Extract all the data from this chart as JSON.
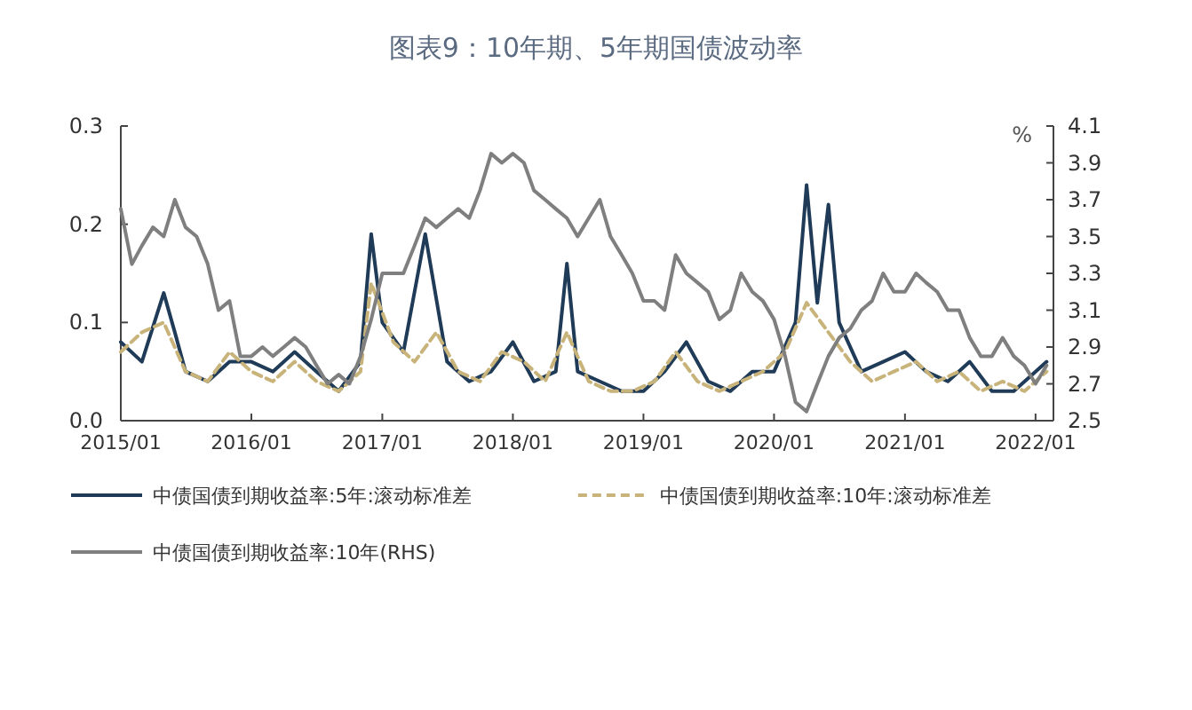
{
  "chart_data": {
    "type": "line",
    "title": "图表9：10年期、5年期国债波动率",
    "y2label": "%",
    "legend": "bottom",
    "xlim": [
      "2015-01-01",
      "2022-02-20"
    ],
    "xticks": [
      {
        "value": "2015-01-01",
        "label": "2015/01"
      },
      {
        "value": "2016-01-01",
        "label": "2016/01"
      },
      {
        "value": "2017-01-01",
        "label": "2017/01"
      },
      {
        "value": "2018-01-01",
        "label": "2018/01"
      },
      {
        "value": "2019-01-01",
        "label": "2019/01"
      },
      {
        "value": "2020-01-01",
        "label": "2020/01"
      },
      {
        "value": "2021-01-01",
        "label": "2021/01"
      },
      {
        "value": "2022-01-01",
        "label": "2022/01"
      }
    ],
    "ylim": [
      0,
      0.3
    ],
    "yticks": [
      {
        "value": 0,
        "label": "0.0"
      },
      0.1,
      0.2,
      0.3
    ],
    "y2lim": [
      2.5,
      4.1
    ],
    "y2ticks": [
      2.5,
      2.7,
      2.9,
      3.1,
      3.3,
      3.5,
      3.7,
      3.9,
      4.1
    ],
    "series": [
      {
        "name": "中债国债到期收益率:5年:滚动标准差",
        "color": "#1f3b57",
        "line_style": "solid",
        "x": [
          "2015-01",
          "2015-03",
          "2015-05",
          "2015-06",
          "2015-07",
          "2015-09",
          "2015-11",
          "2016-01",
          "2016-03",
          "2016-05",
          "2016-07",
          "2016-09",
          "2016-11",
          "2016-12",
          "2017-01",
          "2017-03",
          "2017-05",
          "2017-07",
          "2017-09",
          "2017-11",
          "2018-01",
          "2018-03",
          "2018-05",
          "2018-06",
          "2018-07",
          "2018-09",
          "2018-11",
          "2019-01",
          "2019-03",
          "2019-05",
          "2019-07",
          "2019-09",
          "2019-11",
          "2020-01",
          "2020-03",
          "2020-04",
          "2020-05",
          "2020-06",
          "2020-07",
          "2020-09",
          "2020-11",
          "2021-01",
          "2021-03",
          "2021-05",
          "2021-07",
          "2021-09",
          "2021-11",
          "2022-01",
          "2022-02"
        ],
        "values": [
          0.08,
          0.06,
          0.13,
          0.09,
          0.05,
          0.04,
          0.06,
          0.06,
          0.05,
          0.07,
          0.05,
          0.03,
          0.06,
          0.19,
          0.1,
          0.07,
          0.19,
          0.06,
          0.04,
          0.05,
          0.08,
          0.04,
          0.05,
          0.16,
          0.05,
          0.04,
          0.03,
          0.03,
          0.05,
          0.08,
          0.04,
          0.03,
          0.05,
          0.05,
          0.1,
          0.24,
          0.12,
          0.22,
          0.1,
          0.05,
          0.06,
          0.07,
          0.05,
          0.04,
          0.06,
          0.03,
          0.03,
          0.05,
          0.06
        ]
      },
      {
        "name": "中债国债到期收益率:10年:滚动标准差",
        "color": "#c8b37a",
        "line_style": "dashed",
        "x": [
          "2015-01",
          "2015-03",
          "2015-05",
          "2015-07",
          "2015-09",
          "2015-11",
          "2016-01",
          "2016-03",
          "2016-05",
          "2016-07",
          "2016-09",
          "2016-11",
          "2016-12",
          "2017-02",
          "2017-04",
          "2017-06",
          "2017-08",
          "2017-10",
          "2017-12",
          "2018-02",
          "2018-04",
          "2018-06",
          "2018-08",
          "2018-10",
          "2018-12",
          "2019-02",
          "2019-04",
          "2019-06",
          "2019-08",
          "2019-10",
          "2019-12",
          "2020-02",
          "2020-04",
          "2020-06",
          "2020-08",
          "2020-10",
          "2020-12",
          "2021-02",
          "2021-04",
          "2021-06",
          "2021-08",
          "2021-10",
          "2021-12",
          "2022-02"
        ],
        "values": [
          0.07,
          0.09,
          0.1,
          0.05,
          0.04,
          0.07,
          0.05,
          0.04,
          0.06,
          0.04,
          0.03,
          0.05,
          0.14,
          0.08,
          0.06,
          0.09,
          0.05,
          0.04,
          0.07,
          0.06,
          0.04,
          0.09,
          0.04,
          0.03,
          0.03,
          0.04,
          0.07,
          0.04,
          0.03,
          0.04,
          0.05,
          0.07,
          0.12,
          0.09,
          0.06,
          0.04,
          0.05,
          0.06,
          0.04,
          0.05,
          0.03,
          0.04,
          0.03,
          0.05
        ]
      },
      {
        "name": "中债国债到期收益率:10年(RHS)",
        "color": "#7f7f7f",
        "line_style": "solid",
        "axis": "y2",
        "x": [
          "2015-01",
          "2015-02",
          "2015-03",
          "2015-04",
          "2015-05",
          "2015-06",
          "2015-07",
          "2015-08",
          "2015-09",
          "2015-10",
          "2015-11",
          "2015-12",
          "2016-01",
          "2016-02",
          "2016-03",
          "2016-04",
          "2016-05",
          "2016-06",
          "2016-07",
          "2016-08",
          "2016-09",
          "2016-10",
          "2016-11",
          "2016-12",
          "2017-01",
          "2017-02",
          "2017-03",
          "2017-04",
          "2017-05",
          "2017-06",
          "2017-07",
          "2017-08",
          "2017-09",
          "2017-10",
          "2017-11",
          "2017-12",
          "2018-01",
          "2018-02",
          "2018-03",
          "2018-04",
          "2018-05",
          "2018-06",
          "2018-07",
          "2018-08",
          "2018-09",
          "2018-10",
          "2018-11",
          "2018-12",
          "2019-01",
          "2019-02",
          "2019-03",
          "2019-04",
          "2019-05",
          "2019-06",
          "2019-07",
          "2019-08",
          "2019-09",
          "2019-10",
          "2019-11",
          "2019-12",
          "2020-01",
          "2020-02",
          "2020-03",
          "2020-04",
          "2020-05",
          "2020-06",
          "2020-07",
          "2020-08",
          "2020-09",
          "2020-10",
          "2020-11",
          "2020-12",
          "2021-01",
          "2021-02",
          "2021-03",
          "2021-04",
          "2021-05",
          "2021-06",
          "2021-07",
          "2021-08",
          "2021-09",
          "2021-10",
          "2021-11",
          "2021-12",
          "2022-01",
          "2022-02"
        ],
        "values": [
          3.65,
          3.35,
          3.45,
          3.55,
          3.5,
          3.7,
          3.55,
          3.5,
          3.35,
          3.1,
          3.15,
          2.85,
          2.85,
          2.9,
          2.85,
          2.9,
          2.95,
          2.9,
          2.8,
          2.7,
          2.75,
          2.7,
          2.85,
          3.05,
          3.3,
          3.3,
          3.3,
          3.45,
          3.6,
          3.55,
          3.6,
          3.65,
          3.6,
          3.75,
          3.95,
          3.9,
          3.95,
          3.9,
          3.75,
          3.7,
          3.65,
          3.6,
          3.5,
          3.6,
          3.7,
          3.5,
          3.4,
          3.3,
          3.15,
          3.15,
          3.1,
          3.4,
          3.3,
          3.25,
          3.2,
          3.05,
          3.1,
          3.3,
          3.2,
          3.15,
          3.05,
          2.85,
          2.6,
          2.55,
          2.7,
          2.85,
          2.95,
          3.0,
          3.1,
          3.15,
          3.3,
          3.2,
          3.2,
          3.3,
          3.25,
          3.2,
          3.1,
          3.1,
          2.95,
          2.85,
          2.85,
          2.95,
          2.85,
          2.8,
          2.7,
          2.8
        ]
      }
    ]
  }
}
